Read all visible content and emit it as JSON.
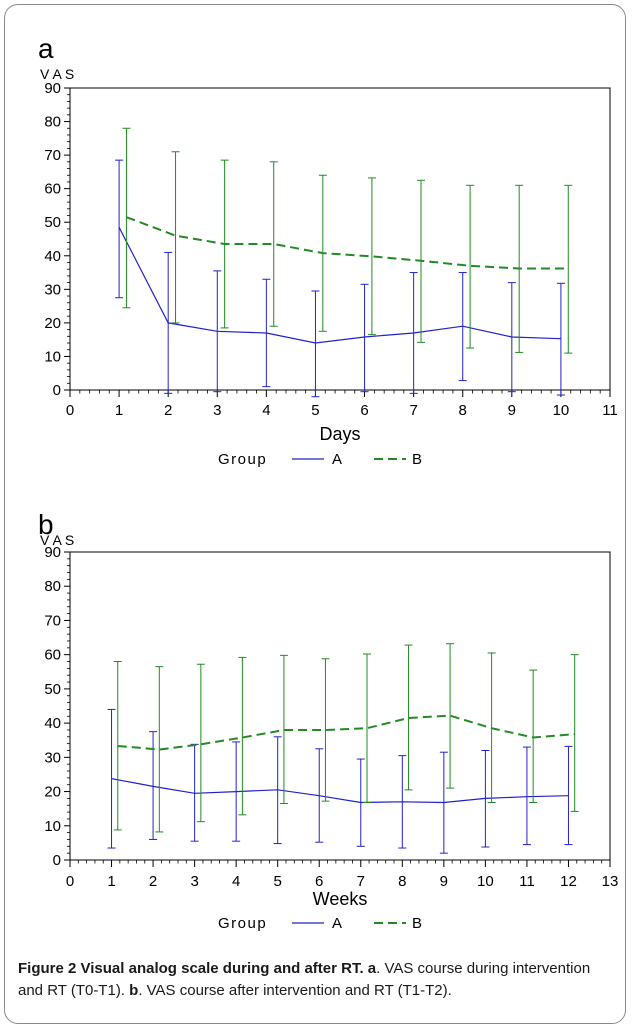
{
  "chart_data": [
    {
      "panel_letter": "a",
      "type": "line",
      "ylabel": "V A S",
      "xlabel": "Days",
      "xlim": [
        0,
        11
      ],
      "ylim": [
        0,
        90
      ],
      "xticks": [
        0,
        1,
        2,
        3,
        4,
        5,
        6,
        7,
        8,
        9,
        10,
        11
      ],
      "yticks": [
        0,
        10,
        20,
        30,
        40,
        50,
        60,
        70,
        80,
        90
      ],
      "legend_title": "Group",
      "legend_placement": "bottom",
      "series": [
        {
          "name": "A",
          "color": "#2222cc",
          "dash": "solid",
          "x": [
            1,
            2,
            3,
            4,
            5,
            6,
            7,
            8,
            9,
            10
          ],
          "mean": [
            48.5,
            20,
            17.5,
            17,
            14,
            15.8,
            17,
            19,
            15.8,
            15.3
          ],
          "lower": [
            27.5,
            -1,
            -0.5,
            1,
            -2,
            -0.5,
            -1,
            2.8,
            -0.5,
            -1.5
          ],
          "upper": [
            68.5,
            41,
            35.5,
            33,
            29.5,
            31.5,
            35,
            35,
            32,
            31.8
          ]
        },
        {
          "name": "B",
          "color": "#228b22",
          "dash": "dashed",
          "x": [
            1.15,
            2.15,
            3.15,
            4.15,
            5.15,
            6.15,
            7.15,
            8.15,
            9.15,
            10.15
          ],
          "mean": [
            51.5,
            46,
            43.5,
            43.5,
            40.8,
            39.8,
            38.5,
            37,
            36.2,
            36.2
          ],
          "lower": [
            24.5,
            20,
            18.5,
            19,
            17.5,
            16.5,
            14.2,
            12.5,
            11.2,
            11
          ],
          "upper": [
            78,
            71,
            68.5,
            68,
            64,
            63.2,
            62.5,
            61,
            61,
            61
          ]
        }
      ]
    },
    {
      "panel_letter": "b",
      "type": "line",
      "ylabel": "V A S",
      "xlabel": "Weeks",
      "xlim": [
        0,
        13
      ],
      "ylim": [
        0,
        90
      ],
      "xticks": [
        0,
        1,
        2,
        3,
        4,
        5,
        6,
        7,
        8,
        9,
        10,
        11,
        12,
        13
      ],
      "yticks": [
        0,
        10,
        20,
        30,
        40,
        50,
        60,
        70,
        80,
        90
      ],
      "legend_title": "Group",
      "legend_placement": "bottom",
      "series": [
        {
          "name": "A",
          "color": "#2222cc",
          "dash": "solid",
          "x": [
            1,
            2,
            3,
            4,
            5,
            6,
            7,
            8,
            9,
            10,
            11,
            12
          ],
          "mean": [
            23.8,
            21.5,
            19.5,
            20,
            20.5,
            18.8,
            16.8,
            17,
            16.8,
            18,
            18.5,
            18.8
          ],
          "lower": [
            3.5,
            6,
            5.5,
            5.5,
            4.8,
            5.2,
            4,
            3.5,
            2,
            3.8,
            4.5,
            4.5
          ],
          "upper": [
            44,
            37.5,
            33.8,
            34.5,
            36,
            32.5,
            29.5,
            30.5,
            31.5,
            32,
            33,
            33.2
          ]
        },
        {
          "name": "B",
          "color": "#228b22",
          "dash": "dashed",
          "x": [
            1.15,
            2.15,
            3.15,
            4.15,
            5.15,
            6.15,
            7.15,
            8.15,
            9.15,
            10.15,
            11.15,
            12.15
          ],
          "mean": [
            33.3,
            32.3,
            33.8,
            35.8,
            38,
            38,
            38.5,
            41.5,
            42.2,
            38.5,
            35.8,
            36.8
          ],
          "lower": [
            8.8,
            8.2,
            11.2,
            13.2,
            16.5,
            17.2,
            16.8,
            20.5,
            21,
            16.8,
            16.8,
            14.2
          ],
          "upper": [
            58,
            56.5,
            57.2,
            59.2,
            59.8,
            58.8,
            60.2,
            62.8,
            63.2,
            60.5,
            55.5,
            60
          ]
        }
      ]
    }
  ],
  "caption": {
    "bold_part": "Figure 2 Visual analog scale during and after RT. a",
    "text1": ". VAS course during intervention and RT (T0-T1). ",
    "bold_b": "b",
    "text2": ". VAS course after intervention and RT (T1-T2)."
  }
}
